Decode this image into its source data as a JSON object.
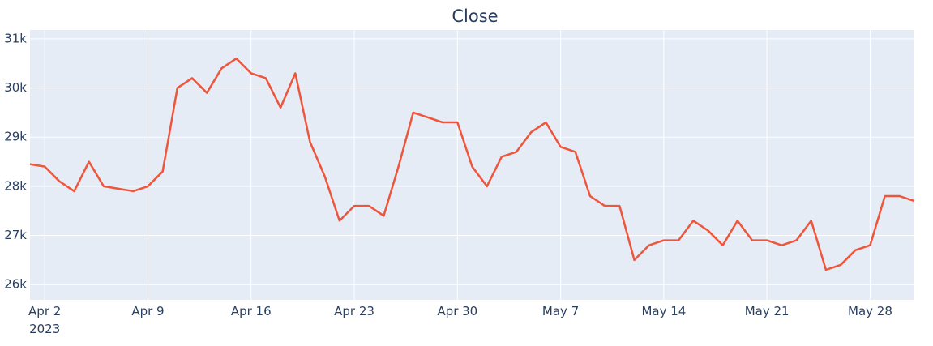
{
  "chart_data": {
    "type": "line",
    "title": "Close",
    "x": [
      "2023-04-01",
      "2023-04-02",
      "2023-04-03",
      "2023-04-04",
      "2023-04-05",
      "2023-04-06",
      "2023-04-07",
      "2023-04-08",
      "2023-04-09",
      "2023-04-10",
      "2023-04-11",
      "2023-04-12",
      "2023-04-13",
      "2023-04-14",
      "2023-04-15",
      "2023-04-16",
      "2023-04-17",
      "2023-04-18",
      "2023-04-19",
      "2023-04-20",
      "2023-04-21",
      "2023-04-22",
      "2023-04-23",
      "2023-04-24",
      "2023-04-25",
      "2023-04-26",
      "2023-04-27",
      "2023-04-28",
      "2023-04-29",
      "2023-04-30",
      "2023-05-01",
      "2023-05-02",
      "2023-05-03",
      "2023-05-04",
      "2023-05-05",
      "2023-05-06",
      "2023-05-07",
      "2023-05-08",
      "2023-05-09",
      "2023-05-10",
      "2023-05-11",
      "2023-05-12",
      "2023-05-13",
      "2023-05-14",
      "2023-05-15",
      "2023-05-16",
      "2023-05-17",
      "2023-05-18",
      "2023-05-19",
      "2023-05-20",
      "2023-05-21",
      "2023-05-22",
      "2023-05-23",
      "2023-05-24",
      "2023-05-25",
      "2023-05-26",
      "2023-05-27",
      "2023-05-28",
      "2023-05-29",
      "2023-05-30",
      "2023-05-31"
    ],
    "series": [
      {
        "name": "Close",
        "color": "#EF553B",
        "values": [
          28450,
          28400,
          28100,
          27900,
          28500,
          28000,
          27950,
          27900,
          28000,
          28300,
          30000,
          30200,
          29900,
          30400,
          30600,
          30300,
          30200,
          29600,
          30300,
          28900,
          28200,
          27300,
          27600,
          27600,
          27400,
          28400,
          29500,
          29400,
          29300,
          29300,
          28400,
          28000,
          28600,
          28700,
          29100,
          29300,
          28800,
          28700,
          27800,
          27600,
          27600,
          26500,
          26800,
          26900,
          26900,
          27300,
          27100,
          26800,
          27300,
          26900,
          26900,
          26800,
          26900,
          27300,
          26300,
          26400,
          26700,
          26800,
          27800,
          27800,
          27700
        ]
      }
    ],
    "xlim": [
      "2023-04-01",
      "2023-05-31"
    ],
    "xticks": [
      {
        "value": "2023-04-02",
        "label": "Apr 2\n2023"
      },
      {
        "value": "2023-04-09",
        "label": "Apr 9"
      },
      {
        "value": "2023-04-16",
        "label": "Apr 16"
      },
      {
        "value": "2023-04-23",
        "label": "Apr 23"
      },
      {
        "value": "2023-04-30",
        "label": "Apr 30"
      },
      {
        "value": "2023-05-07",
        "label": "May 7"
      },
      {
        "value": "2023-05-14",
        "label": "May 14"
      },
      {
        "value": "2023-05-21",
        "label": "May 21"
      },
      {
        "value": "2023-05-28",
        "label": "May 28"
      }
    ],
    "ylim": [
      25690,
      31180
    ],
    "yticks": [
      {
        "value": 26000,
        "label": "26k"
      },
      {
        "value": 27000,
        "label": "27k"
      },
      {
        "value": 28000,
        "label": "28k"
      },
      {
        "value": 29000,
        "label": "29k"
      },
      {
        "value": 30000,
        "label": "30k"
      },
      {
        "value": 31000,
        "label": "31k"
      }
    ],
    "grid": true
  }
}
